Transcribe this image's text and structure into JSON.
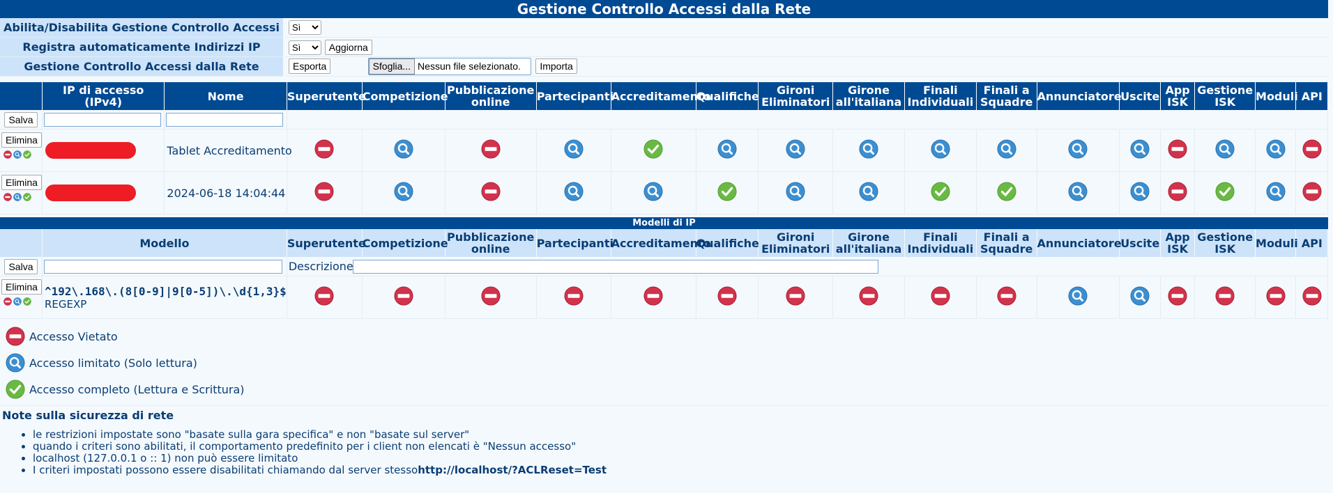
{
  "page": {
    "title": "Gestione Controllo Accessi dalla Rete",
    "colors": {
      "header": "#004a93",
      "subheader": "#cde3fa",
      "denied": "#d2334c",
      "limited": "#3b8fd1",
      "full": "#6ab943"
    }
  },
  "config": {
    "enable": {
      "label": "Abilita/Disabilita Gestione Controllo Accessi",
      "value": "Sì"
    },
    "autoreg": {
      "label": "Registra automaticamente Indirizzi IP",
      "value": "Sì",
      "button": "Aggiorna"
    },
    "io": {
      "label": "Gestione Controllo Accessi dalla Rete",
      "export_button": "Esporta",
      "browse_button": "Sfoglia...",
      "file_status": "Nessun file selezionato.",
      "import_button": "Importa"
    }
  },
  "permission_columns": [
    "Superutente",
    "Competizione",
    "Pubblicazione online",
    "Partecipanti",
    "Accreditamento",
    "Qualifiche",
    "Gironi Eliminatori",
    "Girone all'italiana",
    "Finali Individuali",
    "Finali a Squadre",
    "Annunciatore",
    "Uscite",
    "App ISK",
    "Gestione ISK",
    "Moduli",
    "API"
  ],
  "ip_table": {
    "header_ip": "IP di accesso (IPv4)",
    "header_name": "Nome",
    "save_button": "Salva",
    "delete_button": "Elimina",
    "rows": [
      {
        "name": "Tablet Accreditamento",
        "perms": [
          "denied",
          "limited",
          "denied",
          "limited",
          "full",
          "limited",
          "limited",
          "limited",
          "limited",
          "limited",
          "limited",
          "limited",
          "denied",
          "limited",
          "limited",
          "denied"
        ]
      },
      {
        "name": "2024-06-18 14:04:44",
        "perms": [
          "denied",
          "limited",
          "denied",
          "limited",
          "limited",
          "full",
          "limited",
          "limited",
          "full",
          "full",
          "limited",
          "limited",
          "denied",
          "full",
          "limited",
          "denied"
        ]
      }
    ]
  },
  "models": {
    "section_title": "Modelli di IP",
    "header_model": "Modello",
    "save_button": "Salva",
    "description_label": "Descrizione",
    "delete_button": "Elimina",
    "rows": [
      {
        "pattern": "^192\\.168\\.(8[0-9]|9[0-5])\\.\\d{1,3}$",
        "type": "REGEXP",
        "perms": [
          "denied",
          "denied",
          "denied",
          "denied",
          "denied",
          "denied",
          "denied",
          "denied",
          "denied",
          "denied",
          "limited",
          "limited",
          "denied",
          "denied",
          "denied",
          "denied"
        ]
      }
    ]
  },
  "legend": [
    {
      "icon": "denied",
      "text": "Accesso Vietato"
    },
    {
      "icon": "limited",
      "text": "Accesso limitato (Solo lettura)"
    },
    {
      "icon": "full",
      "text": "Accesso completo (Lettura e Scrittura)"
    }
  ],
  "notes": {
    "title": "Note sulla sicurezza di rete",
    "items": [
      "le restrizioni impostate sono \"basate sulla gara specifica\" e non \"basate sul server\"",
      "quando i criteri sono abilitati, il comportamento predefinito per i client non elencati è \"Nessun accesso\"",
      "localhost (127.0.0.1 o :: 1) non può essere limitato"
    ],
    "last_item_text": "I criteri impostati possono essere disabilitati chiamando dal server stesso",
    "last_item_url": "http://localhost/?ACLReset",
    "last_item_suffix": "=Test"
  }
}
